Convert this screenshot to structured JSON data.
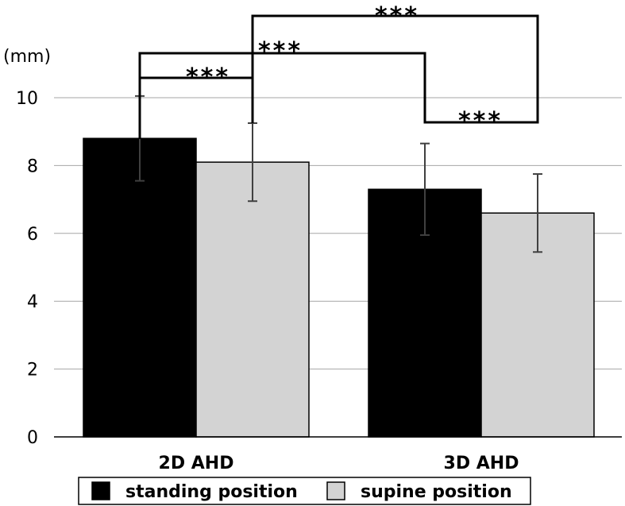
{
  "chart_data": {
    "type": "bar",
    "ylabel": "(mm)",
    "ylim": [
      0,
      10
    ],
    "yticks": [
      0,
      2,
      4,
      6,
      8,
      10
    ],
    "grid": true,
    "legend_position": "bottom",
    "categories": [
      "2D AHD",
      "3D AHD"
    ],
    "series": [
      {
        "name": "standing position",
        "color": "#000000",
        "values": [
          8.8,
          7.3
        ],
        "errors": [
          1.25,
          1.35
        ]
      },
      {
        "name": "supine position",
        "color": "#d3d3d3",
        "values": [
          8.1,
          6.6
        ],
        "errors": [
          1.15,
          1.15
        ]
      }
    ],
    "significance": [
      {
        "from": [
          0,
          0
        ],
        "to": [
          0,
          1
        ],
        "label": "***"
      },
      {
        "from": [
          1,
          0
        ],
        "to": [
          1,
          1
        ],
        "label": "***"
      },
      {
        "from": [
          0,
          0
        ],
        "to": [
          1,
          0
        ],
        "label": "***"
      },
      {
        "from": [
          0,
          1
        ],
        "to": [
          1,
          1
        ],
        "label": "***"
      }
    ]
  }
}
